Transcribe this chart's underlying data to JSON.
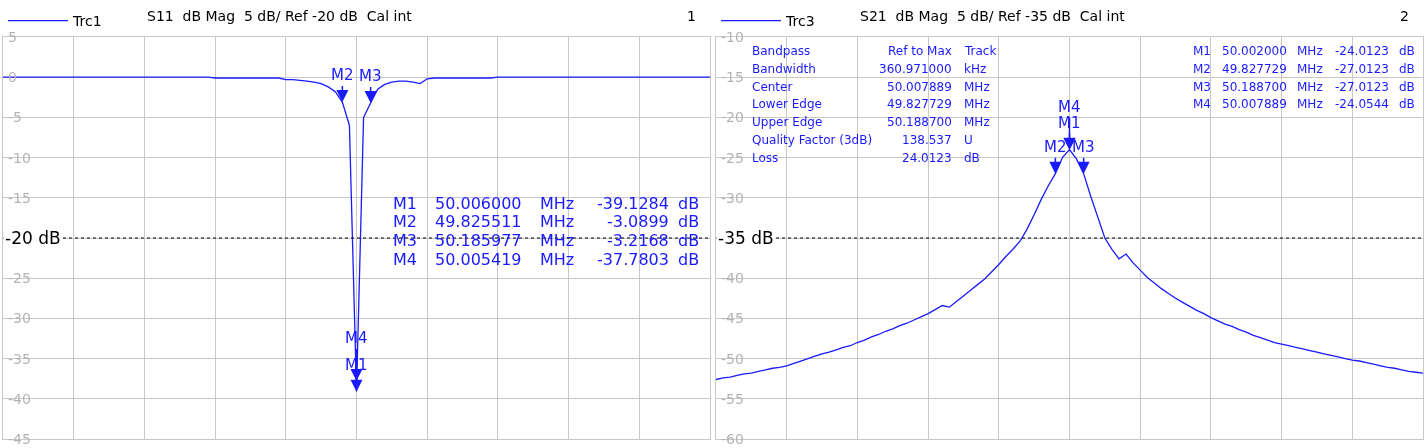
{
  "chart_data": [
    {
      "type": "line",
      "subtitle": "S11  dB Mag  5 dB/ Ref -20 dB  Cal int",
      "ylim": [
        -45,
        5
      ],
      "categories": [
        null,
        null,
        null,
        null,
        null,
        null,
        null,
        null,
        null,
        null,
        null,
        null,
        null,
        null,
        null,
        null,
        null,
        null,
        null,
        null,
        null,
        null,
        null,
        null,
        null,
        null,
        null,
        null,
        null,
        null,
        null,
        null,
        null,
        null,
        null,
        null,
        null,
        null,
        null,
        null,
        null,
        null,
        null,
        null,
        null,
        null,
        null,
        null,
        null,
        null,
        null,
        null,
        null,
        null,
        null,
        null,
        null,
        null,
        null,
        null,
        null,
        null,
        null,
        null,
        null,
        null,
        null,
        null,
        null,
        null,
        null,
        null,
        null,
        null,
        null,
        null,
        null,
        null,
        null,
        null,
        null,
        null,
        null,
        null,
        null,
        null,
        null,
        null,
        null,
        null,
        null,
        null,
        null,
        null,
        null,
        null,
        null,
        null,
        null,
        null,
        null
      ],
      "yticks": [
        -45,
        -40,
        -35,
        -30,
        -25,
        {
          "value": -20,
          "label": null
        },
        -15,
        -10,
        -5,
        0,
        5
      ],
      "tick_labels": "y",
      "grid": true,
      "legend": "top left",
      "marker": "none",
      "line_style": "solid",
      "series": [
        {
          "name": "Trc1",
          "color": "#1a1aff",
          "values": [
            0,
            0,
            0,
            0,
            0,
            0,
            0,
            0,
            0,
            0,
            0,
            0,
            0,
            0,
            0,
            0,
            0,
            0,
            0,
            0,
            0,
            0,
            0,
            0,
            0,
            0,
            0,
            0,
            0,
            0,
            -0.1,
            -0.1,
            -0.1,
            -0.1,
            -0.1,
            -0.1,
            -0.1,
            -0.1,
            -0.1,
            -0.1,
            -0.3,
            -0.3,
            -0.4,
            -0.5,
            -0.6,
            -0.8,
            -1.2,
            -1.8,
            -3.1,
            -6,
            -39.1,
            -5,
            -3.2,
            -1.5,
            -0.9,
            -0.6,
            -0.5,
            -0.5,
            -0.6,
            -0.8,
            -0.2,
            -0.1,
            -0.1,
            -0.1,
            -0.1,
            -0.1,
            -0.1,
            -0.1,
            -0.1,
            -0.1,
            0,
            0,
            0,
            0,
            0,
            0,
            0,
            0,
            0,
            0,
            0,
            0,
            0,
            0,
            0,
            0,
            0,
            0,
            0,
            0,
            0,
            0,
            0,
            0,
            0,
            0,
            0,
            0,
            0,
            0,
            0
          ]
        }
      ],
      "ref_lines": [
        {
          "axis": "y",
          "value": -20,
          "label": "-20 dB",
          "color": "#000000",
          "line_style": "dotted"
        }
      ],
      "annotations": [
        {
          "text": "M1",
          "y": -39.1284
        },
        {
          "text": "M2",
          "y": -3.0899
        },
        {
          "text": "M3",
          "y": -3.2168
        },
        {
          "text": "M4",
          "y": -37.7803
        },
        "M1\t50.006000\tMHz\t-39.1284\tdB\nM2\t49.825511\tMHz\t-3.0899\tdB\nM3\t50.185977\tMHz\t-3.2168\tdB\nM4\t50.005419\tMHz\t-37.7803\tdB",
        "1"
      ]
    },
    {
      "type": "line",
      "subtitle": "S21  dB Mag  5 dB/ Ref -35 dB  Cal int",
      "ylim": [
        -60,
        -10
      ],
      "categories": [
        null,
        null,
        null,
        null,
        null,
        null,
        null,
        null,
        null,
        null,
        null,
        null,
        null,
        null,
        null,
        null,
        null,
        null,
        null,
        null,
        null,
        null,
        null,
        null,
        null,
        null,
        null,
        null,
        null,
        null,
        null,
        null,
        null,
        null,
        null,
        null,
        null,
        null,
        null,
        null,
        null,
        null,
        null,
        null,
        null,
        null,
        null,
        null,
        null,
        null,
        null,
        null,
        null,
        null,
        null,
        null,
        null,
        null,
        null,
        null,
        null,
        null,
        null,
        null,
        null,
        null,
        null,
        null,
        null,
        null,
        null,
        null,
        null,
        null,
        null,
        null,
        null,
        null,
        null,
        null,
        null,
        null,
        null,
        null,
        null,
        null,
        null,
        null,
        null,
        null,
        null,
        null,
        null,
        null,
        null,
        null,
        null,
        null,
        null,
        null,
        null
      ],
      "yticks": [
        -60,
        -55,
        -50,
        -45,
        -40,
        {
          "value": -35,
          "label": null
        },
        -30,
        -25,
        -20,
        -15,
        -10
      ],
      "tick_labels": "y",
      "grid": true,
      "legend": "top left",
      "marker": "none",
      "line_style": "solid",
      "series": [
        {
          "name": "Trc3",
          "color": "#1a1aff",
          "values": [
            -52.6,
            -52.4,
            -52.3,
            -52.1,
            -51.9,
            -51.8,
            -51.6,
            -51.4,
            -51.2,
            -51.1,
            -50.9,
            -50.6,
            -50.3,
            -50.0,
            -49.7,
            -49.4,
            -49.2,
            -48.9,
            -48.6,
            -48.4,
            -48.0,
            -47.7,
            -47.3,
            -47.0,
            -46.6,
            -46.3,
            -45.9,
            -45.6,
            -45.2,
            -44.8,
            -44.4,
            -43.9,
            -43.4,
            -43.6,
            -42.9,
            -42.2,
            -41.5,
            -40.8,
            -40.1,
            -39.2,
            -38.3,
            -37.3,
            -36.4,
            -35.4,
            -33.9,
            -32.1,
            -30.2,
            -28.5,
            -27.0,
            -25.0,
            -24.0,
            -25.2,
            -27.0,
            -29.8,
            -32.4,
            -35.0,
            -36.4,
            -37.6,
            -37.0,
            -38.1,
            -39.0,
            -39.9,
            -40.6,
            -41.3,
            -41.9,
            -42.5,
            -43.0,
            -43.5,
            -44.0,
            -44.4,
            -44.9,
            -45.3,
            -45.7,
            -46.0,
            -46.4,
            -46.7,
            -47.1,
            -47.4,
            -47.7,
            -48.0,
            -48.2,
            -48.4,
            -48.6,
            -48.8,
            -49.0,
            -49.2,
            -49.4,
            -49.6,
            -49.8,
            -50.0,
            -50.2,
            -50.3,
            -50.5,
            -50.7,
            -50.9,
            -51.1,
            -51.2,
            -51.4,
            -51.6,
            -51.7,
            -51.8
          ]
        }
      ],
      "ref_lines": [
        {
          "axis": "y",
          "value": -35,
          "label": "-35 dB",
          "color": "#000000",
          "line_style": "dotted"
        }
      ],
      "annotations": [
        {
          "text": "M1",
          "y": -24.0123
        },
        {
          "text": "M2",
          "y": -27.0123
        },
        {
          "text": "M3",
          "y": -27.0123
        },
        {
          "text": "M4",
          "y": -24.0544
        },
        "Bandpass\tRef to Max\tTrack\nBandwidth\t360.971000\tkHz\nCenter\t50.007889\tMHz\nLower Edge\t49.827729\tMHz\nUpper Edge\t50.188700\tMHz\nQuality Factor (3dB)\t138.537\tU\nLoss\t24.0123\tdB",
        "M1\t50.002000\tMHz\t-24.0123\tdB\nM2\t49.827729\tMHz\t-27.0123\tdB\nM3\t50.188700\tMHz\t-27.0123\tdB\nM4\t50.007889\tMHz\t-24.0544\tdB",
        "2"
      ]
    }
  ]
}
